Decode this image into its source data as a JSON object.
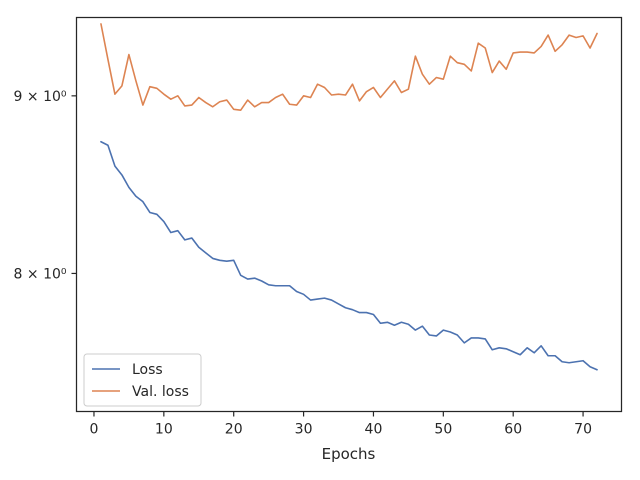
{
  "chart_data": {
    "type": "line",
    "title": "",
    "xlabel": "Epochs",
    "ylabel": "",
    "xlim": [
      -2.5,
      75.5
    ],
    "ylim": [
      7.3,
      9.48
    ],
    "y_scale": "log",
    "grid": false,
    "legend_position": "lower-left",
    "x_ticks": [
      0,
      10,
      20,
      30,
      40,
      50,
      60,
      70
    ],
    "y_ticks": [
      {
        "value": 8,
        "label": "8 × 10⁰"
      },
      {
        "value": 9,
        "label": "9 × 10⁰"
      }
    ],
    "x": [
      1,
      2,
      3,
      4,
      5,
      6,
      7,
      8,
      9,
      10,
      11,
      12,
      13,
      14,
      15,
      16,
      17,
      18,
      19,
      20,
      21,
      22,
      23,
      24,
      25,
      26,
      27,
      28,
      29,
      30,
      31,
      32,
      33,
      34,
      35,
      36,
      37,
      38,
      39,
      40,
      41,
      42,
      43,
      44,
      45,
      46,
      47,
      48,
      49,
      50,
      51,
      52,
      53,
      54,
      55,
      56,
      57,
      58,
      59,
      60,
      61,
      62,
      63,
      64,
      65,
      66,
      67,
      68,
      69,
      70,
      71,
      72
    ],
    "series": [
      {
        "name": "Loss",
        "color": "#4c72b0",
        "values": [
          8.73,
          8.71,
          8.59,
          8.54,
          8.47,
          8.42,
          8.39,
          8.33,
          8.32,
          8.28,
          8.22,
          8.23,
          8.18,
          8.19,
          8.14,
          8.11,
          8.08,
          8.07,
          8.065,
          8.07,
          7.99,
          7.97,
          7.975,
          7.96,
          7.94,
          7.935,
          7.935,
          7.935,
          7.905,
          7.89,
          7.86,
          7.865,
          7.87,
          7.86,
          7.84,
          7.82,
          7.81,
          7.795,
          7.795,
          7.785,
          7.74,
          7.745,
          7.73,
          7.745,
          7.735,
          7.705,
          7.725,
          7.68,
          7.675,
          7.705,
          7.695,
          7.68,
          7.64,
          7.665,
          7.665,
          7.66,
          7.605,
          7.615,
          7.61,
          7.595,
          7.58,
          7.615,
          7.59,
          7.625,
          7.575,
          7.575,
          7.545,
          7.54,
          7.545,
          7.55,
          7.52,
          7.505
        ]
      },
      {
        "name": "Val. loss",
        "color": "#dd8452",
        "values": [
          9.44,
          9.22,
          9.01,
          9.06,
          9.25,
          9.09,
          8.945,
          9.055,
          9.045,
          9.01,
          8.98,
          9.0,
          8.94,
          8.945,
          8.99,
          8.96,
          8.935,
          8.965,
          8.975,
          8.92,
          8.915,
          8.975,
          8.935,
          8.96,
          8.96,
          8.99,
          9.01,
          8.95,
          8.945,
          9.0,
          8.99,
          9.07,
          9.05,
          9.005,
          9.01,
          9.005,
          9.07,
          8.97,
          9.025,
          9.05,
          8.99,
          9.04,
          9.09,
          9.02,
          9.04,
          9.24,
          9.13,
          9.07,
          9.11,
          9.1,
          9.24,
          9.2,
          9.19,
          9.15,
          9.32,
          9.29,
          9.14,
          9.21,
          9.16,
          9.26,
          9.265,
          9.265,
          9.26,
          9.3,
          9.37,
          9.27,
          9.31,
          9.37,
          9.355,
          9.365,
          9.29,
          9.38
        ]
      }
    ]
  }
}
